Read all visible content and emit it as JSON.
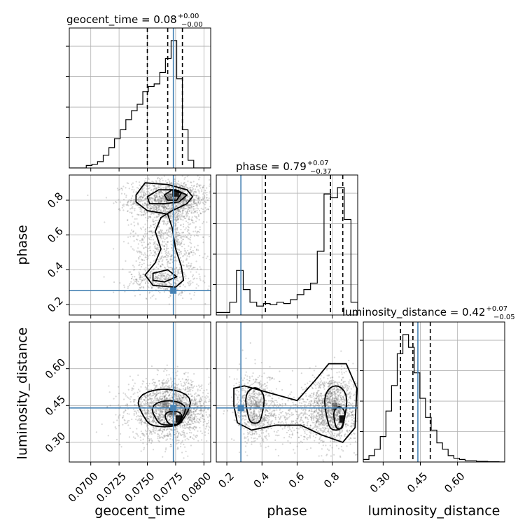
{
  "colors": {
    "truth": "#4682b4",
    "ink": "#000000",
    "grid": "#b0b0b0",
    "samples": "#6e6e6e"
  },
  "chart_data": {
    "type": "corner",
    "parameters": [
      "geocent_time",
      "phase",
      "luminosity_distance"
    ],
    "truth": {
      "geocent_time": 0.0773,
      "phase": 0.28,
      "luminosity_distance": 0.44
    },
    "panel_titles": {
      "geocent_time": {
        "text": "geocent_time = 0.08",
        "plus": "+0.00",
        "minus": "−0.00"
      },
      "phase": {
        "text": "phase = 0.79",
        "plus": "+0.07",
        "minus": "−0.37"
      },
      "luminosity_distance": {
        "text": "luminosity_distance = 0.42",
        "plus": "+0.07",
        "minus": "−0.05"
      }
    },
    "axes": {
      "geocent_time": {
        "range": [
          0.0681,
          0.0806
        ],
        "ticks": [
          0.07,
          0.0725,
          0.075,
          0.0775,
          0.08
        ],
        "tick_labels": [
          "0.0700",
          "0.0725",
          "0.0750",
          "0.0775",
          "0.0800"
        ]
      },
      "phase": {
        "range": [
          0.14,
          0.945
        ],
        "ticks": [
          0.2,
          0.4,
          0.6,
          0.8
        ],
        "tick_labels": [
          "0.2",
          "0.4",
          "0.6",
          "0.8"
        ]
      },
      "luminosity_distance": {
        "range": [
          0.22,
          0.79
        ],
        "ticks": [
          0.3,
          0.45,
          0.6
        ],
        "tick_labels": [
          "0.30",
          "0.45",
          "0.60"
        ]
      }
    },
    "quantiles": {
      "geocent_time": [
        0.075,
        0.0768,
        0.0781
      ],
      "phase": [
        0.42,
        0.79,
        0.86
      ],
      "luminosity_distance": [
        0.37,
        0.42,
        0.49
      ]
    },
    "hist1d": {
      "geocent_time": [
        0,
        0,
        0,
        0.02,
        0.03,
        0.05,
        0.1,
        0.16,
        0.23,
        0.3,
        0.38,
        0.45,
        0.5,
        0.6,
        0.64,
        0.66,
        0.75,
        0.86,
        1.0,
        0.7,
        0.3,
        0.06,
        0,
        0,
        0
      ],
      "phase": [
        0.02,
        0.02,
        0.1,
        0.35,
        0.2,
        0.1,
        0.07,
        0.09,
        0.08,
        0.1,
        0.09,
        0.12,
        0.16,
        0.2,
        0.25,
        0.5,
        0.95,
        0.92,
        1.0,
        0.75,
        0.1
      ],
      "luminosity_distance": [
        0.02,
        0.05,
        0.1,
        0.2,
        0.4,
        0.6,
        0.85,
        1.0,
        0.9,
        0.7,
        0.5,
        0.35,
        0.25,
        0.15,
        0.1,
        0.05,
        0.03,
        0.02,
        0.01,
        0.01,
        0.005,
        0.005,
        0.002,
        0.002,
        0.001
      ]
    },
    "grid": true
  }
}
